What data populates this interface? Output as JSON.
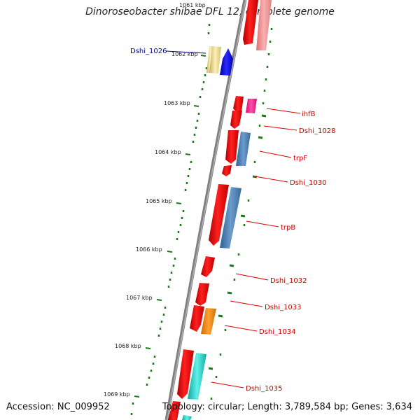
{
  "header": {
    "title": "Dinoroseobacter shibae DFL 12, complete genome"
  },
  "footer": {
    "accession": "Accession: NC_009952",
    "topology": "Topology: circular; Length: 3,789,584 bp; Genes: 3,634"
  },
  "scale": {
    "top_label": "1061 kbp",
    "ticks": [
      "1062 kbp",
      "1063 kbp",
      "1064 kbp",
      "1065 kbp",
      "1066 kbp",
      "1067 kbp",
      "1068 kbp",
      "1069 kbp"
    ]
  },
  "genes": [
    {
      "name": "Dshi_1026",
      "color": "#000099"
    },
    {
      "name": "ihfB",
      "color": "#cc0000"
    },
    {
      "name": "Dshi_1028",
      "color": "#cc0000"
    },
    {
      "name": "trpF",
      "color": "#cc0000"
    },
    {
      "name": "Dshi_1030",
      "color": "#cc0000"
    },
    {
      "name": "trpB",
      "color": "#cc0000"
    },
    {
      "name": "Dshi_1032",
      "color": "#cc0000"
    },
    {
      "name": "Dshi_1033",
      "color": "#cc0000"
    },
    {
      "name": "Dshi_1034",
      "color": "#cc0000"
    },
    {
      "name": "Dshi_1035",
      "color": "#cc0000"
    }
  ],
  "colors": {
    "backbone": "#808080",
    "gc_skew": "#1a7a1a",
    "cds_forward": "#ff0000",
    "cds_reverse_steelblue": "#4f81bd",
    "cds_pink": "#ff1493",
    "cds_orange": "#ff8c00",
    "cds_cyan": "#22d3c9",
    "cds_pale_yellow": "#f0e29a",
    "cds_blue": "#0000ee"
  }
}
